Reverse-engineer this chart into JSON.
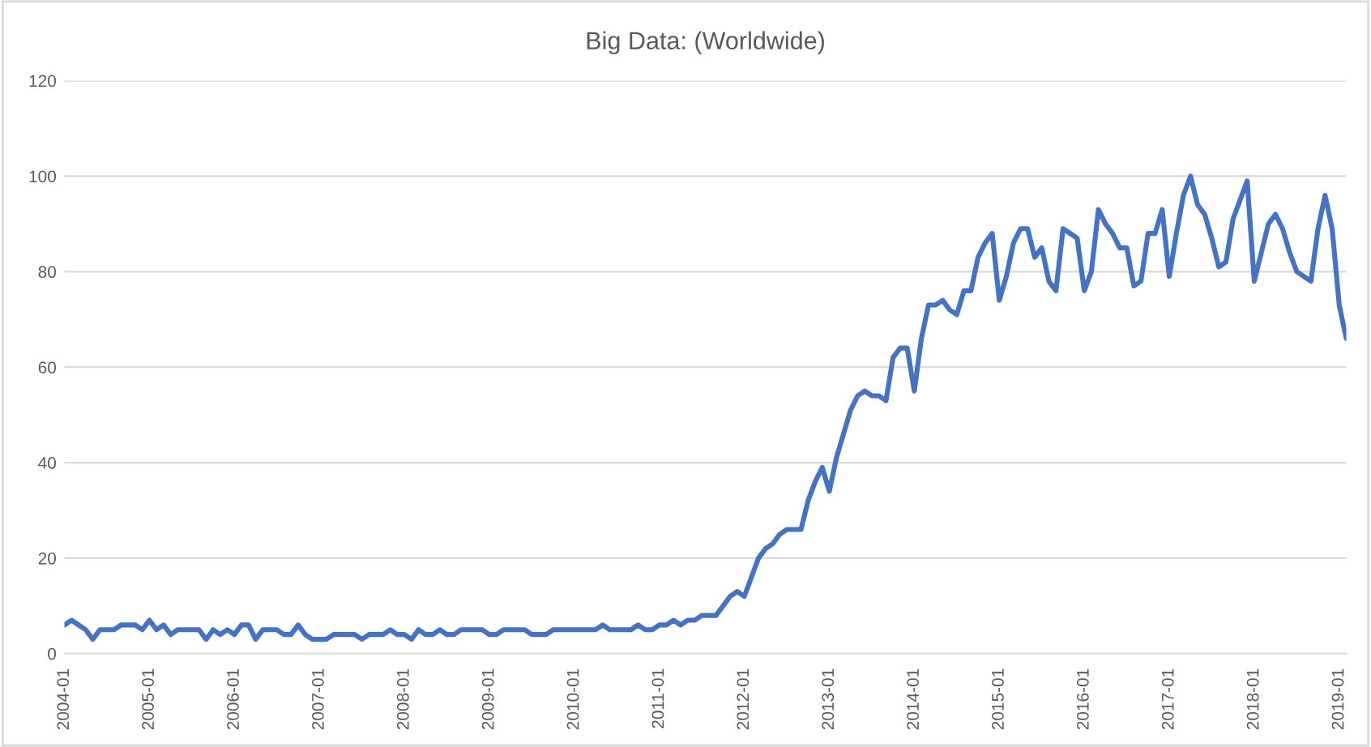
{
  "chart_data": {
    "type": "line",
    "title": "Big Data: (Worldwide)",
    "categories": [
      "2004-01",
      null,
      null,
      null,
      null,
      null,
      null,
      null,
      null,
      null,
      null,
      null,
      "2005-01",
      null,
      null,
      null,
      null,
      null,
      null,
      null,
      null,
      null,
      null,
      null,
      "2006-01",
      null,
      null,
      null,
      null,
      null,
      null,
      null,
      null,
      null,
      null,
      null,
      "2007-01",
      null,
      null,
      null,
      null,
      null,
      null,
      null,
      null,
      null,
      null,
      null,
      "2008-01",
      null,
      null,
      null,
      null,
      null,
      null,
      null,
      null,
      null,
      null,
      null,
      "2009-01",
      null,
      null,
      null,
      null,
      null,
      null,
      null,
      null,
      null,
      null,
      null,
      "2010-01",
      null,
      null,
      null,
      null,
      null,
      null,
      null,
      null,
      null,
      null,
      null,
      "2011-01",
      null,
      null,
      null,
      null,
      null,
      null,
      null,
      null,
      null,
      null,
      null,
      "2012-01",
      null,
      null,
      null,
      null,
      null,
      null,
      null,
      null,
      null,
      null,
      null,
      "2013-01",
      null,
      null,
      null,
      null,
      null,
      null,
      null,
      null,
      null,
      null,
      null,
      "2014-01",
      null,
      null,
      null,
      null,
      null,
      null,
      null,
      null,
      null,
      null,
      null,
      "2015-01",
      null,
      null,
      null,
      null,
      null,
      null,
      null,
      null,
      null,
      null,
      null,
      "2016-01",
      null,
      null,
      null,
      null,
      null,
      null,
      null,
      null,
      null,
      null,
      null,
      "2017-01",
      null,
      null,
      null,
      null,
      null,
      null,
      null,
      null,
      null,
      null,
      null,
      "2018-01",
      null,
      null,
      null,
      null,
      null,
      null,
      null,
      null,
      null,
      null,
      null,
      "2019-01",
      null
    ],
    "series": [
      {
        "color": "#4472c4",
        "values": [
          6,
          7,
          6,
          5,
          3,
          5,
          5,
          5,
          6,
          6,
          6,
          5,
          7,
          5,
          6,
          4,
          5,
          5,
          5,
          5,
          3,
          5,
          4,
          5,
          4,
          6,
          6,
          3,
          5,
          5,
          5,
          4,
          4,
          6,
          4,
          3,
          3,
          3,
          4,
          4,
          4,
          4,
          3,
          4,
          4,
          4,
          5,
          4,
          4,
          3,
          5,
          4,
          4,
          5,
          4,
          4,
          5,
          5,
          5,
          5,
          4,
          4,
          5,
          5,
          5,
          5,
          4,
          4,
          4,
          5,
          5,
          5,
          5,
          5,
          5,
          5,
          6,
          5,
          5,
          5,
          5,
          6,
          5,
          5,
          6,
          6,
          7,
          6,
          7,
          7,
          8,
          8,
          8,
          10,
          12,
          13,
          12,
          16,
          20,
          22,
          23,
          25,
          26,
          26,
          26,
          32,
          36,
          39,
          34,
          41,
          46,
          51,
          54,
          55,
          54,
          54,
          53,
          62,
          64,
          64,
          55,
          66,
          73,
          73,
          74,
          72,
          71,
          76,
          76,
          83,
          86,
          88,
          74,
          79,
          86,
          89,
          89,
          83,
          85,
          78,
          76,
          89,
          88,
          87,
          76,
          80,
          93,
          90,
          88,
          85,
          85,
          77,
          78,
          88,
          88,
          93,
          79,
          88,
          96,
          100,
          94,
          92,
          87,
          81,
          82,
          91,
          95,
          99,
          78,
          84,
          90,
          92,
          89,
          84,
          80,
          79,
          78,
          89,
          96,
          89,
          73,
          66
        ]
      }
    ],
    "ylim": [
      0,
      120
    ],
    "yticks": [
      0,
      20,
      40,
      60,
      80,
      100,
      120
    ],
    "grid": "y",
    "marker": "none",
    "line_style": "solid"
  }
}
